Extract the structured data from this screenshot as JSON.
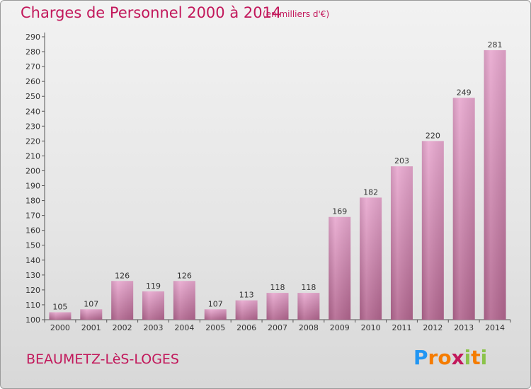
{
  "header": {
    "title": "Charges de Personnel 2000 à 2014",
    "subtitle": "(en milliers d'€)"
  },
  "footer": {
    "commune": "BEAUMETZ-LèS-LOGES",
    "logo_letters": [
      "P",
      "r",
      "o",
      "x",
      "i",
      "t",
      "i"
    ],
    "logo_colors": [
      "#2196f3",
      "#f57c00",
      "#f57c00",
      "#c2185b",
      "#8bc34a",
      "#f57c00",
      "#8bc34a"
    ]
  },
  "colors": {
    "title": "#c2185b",
    "bar_top": "#e8a8cf",
    "bar_bottom": "#b2668f"
  },
  "chart_data": {
    "type": "bar",
    "categories": [
      "2000",
      "2001",
      "2002",
      "2003",
      "2004",
      "2005",
      "2006",
      "2007",
      "2008",
      "2009",
      "2010",
      "2011",
      "2012",
      "2013",
      "2014"
    ],
    "values": [
      105,
      107,
      126,
      119,
      126,
      107,
      113,
      118,
      118,
      169,
      182,
      203,
      220,
      249,
      281
    ],
    "title": "Charges de Personnel 2000 à 2014",
    "subtitle": "(en milliers d'€)",
    "xlabel": "",
    "ylabel": "",
    "ylim": [
      100,
      290
    ],
    "yticks": [
      100,
      110,
      120,
      130,
      140,
      150,
      160,
      170,
      180,
      190,
      200,
      210,
      220,
      230,
      240,
      250,
      260,
      270,
      280,
      290
    ],
    "grid": false,
    "legend": "none"
  }
}
